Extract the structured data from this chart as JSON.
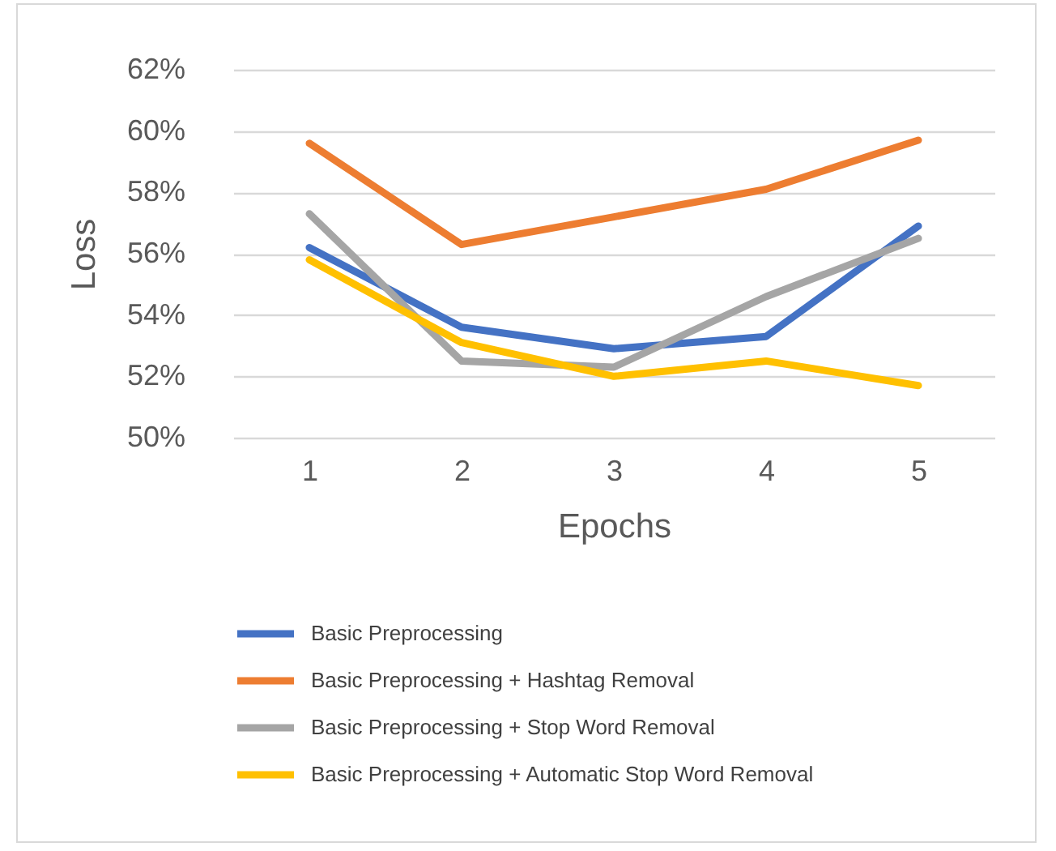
{
  "chart_data": {
    "type": "line",
    "xlabel": "Epochs",
    "ylabel": "Loss",
    "categories": [
      "1",
      "2",
      "3",
      "4",
      "5"
    ],
    "series": [
      {
        "name": "Basic Preprocessing",
        "color": "#4472c4",
        "values": [
          56.2,
          53.6,
          52.9,
          53.3,
          56.9
        ]
      },
      {
        "name": "Basic Preprocessing + Hashtag Removal",
        "color": "#ed7d31",
        "values": [
          59.6,
          56.3,
          57.2,
          58.1,
          59.7
        ]
      },
      {
        "name": "Basic Preprocessing + Stop Word Removal",
        "color": "#a5a5a5",
        "values": [
          57.3,
          52.5,
          52.3,
          54.6,
          56.5
        ]
      },
      {
        "name": "Basic Preprocessing + Automatic Stop Word Removal",
        "color": "#ffc000",
        "values": [
          55.8,
          53.1,
          52.0,
          52.5,
          51.7
        ]
      }
    ],
    "ylim": [
      50,
      62
    ],
    "yticks": [
      {
        "value": 50,
        "label": "50%"
      },
      {
        "value": 52,
        "label": "52%"
      },
      {
        "value": 54,
        "label": "54%"
      },
      {
        "value": 56,
        "label": "56%"
      },
      {
        "value": 58,
        "label": "58%"
      },
      {
        "value": 60,
        "label": "60%"
      },
      {
        "value": 62,
        "label": "62%"
      }
    ],
    "grid": "y",
    "legend": "bottom",
    "marker": "none",
    "line_style": "solid"
  }
}
